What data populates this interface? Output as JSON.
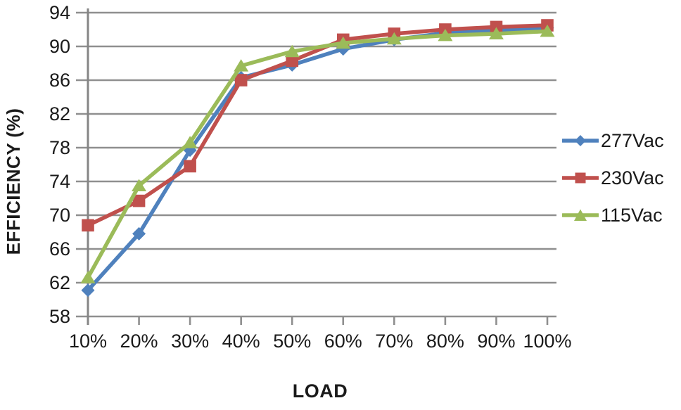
{
  "chart_data": {
    "type": "line",
    "title": "",
    "xlabel": "LOAD",
    "ylabel": "EFFICIENCY (%)",
    "categories": [
      "10%",
      "20%",
      "30%",
      "40%",
      "50%",
      "60%",
      "70%",
      "80%",
      "90%",
      "100%"
    ],
    "y_ticks": [
      94,
      90,
      86,
      82,
      78,
      74,
      70,
      66,
      62,
      58
    ],
    "ylim": [
      58,
      94
    ],
    "grid": "horizontal-only",
    "legend_position": "right",
    "axis_color": "#858585",
    "grid_color": "#8f8f8f",
    "series": [
      {
        "name": "277Vac",
        "color": "#4F81BD",
        "marker": "diamond",
        "values": [
          61.1,
          67.8,
          77.7,
          86.3,
          87.8,
          89.7,
          90.8,
          91.6,
          91.9,
          92.2
        ]
      },
      {
        "name": "230Vac",
        "color": "#C0504D",
        "marker": "square",
        "values": [
          68.8,
          71.7,
          75.8,
          86.0,
          88.3,
          90.8,
          91.5,
          92.0,
          92.3,
          92.5
        ]
      },
      {
        "name": "115Vac",
        "color": "#9BBB59",
        "marker": "triangle",
        "values": [
          62.6,
          73.5,
          78.6,
          87.7,
          89.4,
          90.4,
          90.9,
          91.3,
          91.5,
          91.8
        ]
      }
    ]
  }
}
